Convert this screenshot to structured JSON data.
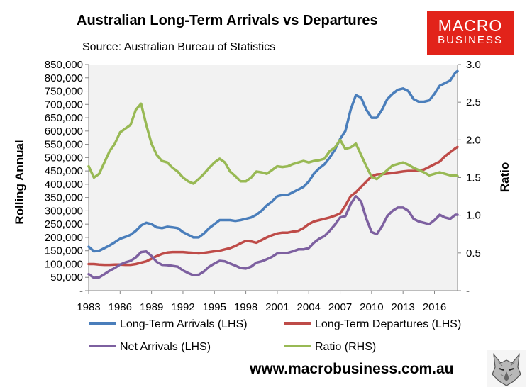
{
  "header": {
    "title": "Australian Long-Term Arrivals vs Departures",
    "subtitle": "Source: Australian Bureau of Statistics"
  },
  "logo": {
    "line1": "MACRO",
    "line2": "BUSINESS",
    "color": "#e2231a"
  },
  "footer": {
    "website": "www.macrobusiness.com.au"
  },
  "chart_data": {
    "type": "line",
    "title": "Australian Long-Term Arrivals vs Departures",
    "subtitle": "Source: Australian Bureau of Statistics",
    "ylabel": "Rolling Annual",
    "y2label": "Ratio",
    "x_ticks": [
      "1983",
      "1986",
      "1989",
      "1992",
      "1995",
      "1998",
      "2001",
      "2004",
      "2007",
      "2010",
      "2013",
      "2016"
    ],
    "xlim": [
      1983,
      2018.2
    ],
    "ylim": [
      0,
      850000
    ],
    "y2lim": [
      0,
      3.0
    ],
    "y_ticks": [
      "-",
      "50,000",
      "100,000",
      "150,000",
      "200,000",
      "250,000",
      "300,000",
      "350,000",
      "400,000",
      "450,000",
      "500,000",
      "550,000",
      "600,000",
      "650,000",
      "700,000",
      "750,000",
      "800,000",
      "850,000"
    ],
    "y2_ticks": [
      "-",
      "0.5",
      "1.0",
      "1.5",
      "2.0",
      "2.5",
      "3.0"
    ],
    "legend_position": "bottom",
    "background": "#f2f2f2",
    "series": [
      {
        "name": "Long-Term Arrivals (LHS)",
        "axis": "left",
        "color": "#4a7ebb",
        "x": [
          1983,
          1983.5,
          1984,
          1984.5,
          1985,
          1985.5,
          1986,
          1986.5,
          1987,
          1987.5,
          1988,
          1988.5,
          1989,
          1989.5,
          1990,
          1990.5,
          1991,
          1991.5,
          1992,
          1992.5,
          1993,
          1993.5,
          1994,
          1994.5,
          1995,
          1995.5,
          1996,
          1996.5,
          1997,
          1997.5,
          1998,
          1998.5,
          1999,
          1999.5,
          2000,
          2000.5,
          2001,
          2001.5,
          2002,
          2002.5,
          2003,
          2003.5,
          2004,
          2004.5,
          2005,
          2005.5,
          2006,
          2006.5,
          2007,
          2007.5,
          2008,
          2008.5,
          2009,
          2009.5,
          2010,
          2010.5,
          2011,
          2011.5,
          2012,
          2012.5,
          2013,
          2013.5,
          2014,
          2014.5,
          2015,
          2015.5,
          2016,
          2016.5,
          2017,
          2017.5,
          2018,
          2018.2
        ],
        "values": [
          165000,
          148000,
          150000,
          160000,
          170000,
          182000,
          195000,
          202000,
          210000,
          225000,
          245000,
          255000,
          250000,
          238000,
          235000,
          240000,
          238000,
          235000,
          220000,
          210000,
          200000,
          200000,
          215000,
          235000,
          250000,
          265000,
          265000,
          265000,
          262000,
          265000,
          270000,
          275000,
          285000,
          300000,
          320000,
          335000,
          355000,
          360000,
          360000,
          370000,
          380000,
          390000,
          410000,
          440000,
          460000,
          475000,
          500000,
          530000,
          570000,
          600000,
          680000,
          735000,
          725000,
          680000,
          650000,
          650000,
          680000,
          720000,
          740000,
          755000,
          760000,
          750000,
          720000,
          710000,
          710000,
          715000,
          740000,
          770000,
          780000,
          790000,
          820000,
          825000
        ]
      },
      {
        "name": "Long-Term Departures (LHS)",
        "axis": "left",
        "color": "#be4b48",
        "x": [
          1983,
          1983.5,
          1984,
          1984.5,
          1985,
          1985.5,
          1986,
          1986.5,
          1987,
          1987.5,
          1988,
          1988.5,
          1989,
          1989.5,
          1990,
          1990.5,
          1991,
          1991.5,
          1992,
          1992.5,
          1993,
          1993.5,
          1994,
          1994.5,
          1995,
          1995.5,
          1996,
          1996.5,
          1997,
          1997.5,
          1998,
          1998.5,
          1999,
          1999.5,
          2000,
          2000.5,
          2001,
          2001.5,
          2002,
          2002.5,
          2003,
          2003.5,
          2004,
          2004.5,
          2005,
          2005.5,
          2006,
          2006.5,
          2007,
          2007.5,
          2008,
          2008.5,
          2009,
          2009.5,
          2010,
          2010.5,
          2011,
          2011.5,
          2012,
          2012.5,
          2013,
          2013.5,
          2014,
          2014.5,
          2015,
          2015.5,
          2016,
          2016.5,
          2017,
          2017.5,
          2018,
          2018.2
        ],
        "values": [
          100000,
          100000,
          98000,
          97000,
          97000,
          98000,
          98000,
          97000,
          97000,
          100000,
          105000,
          110000,
          120000,
          130000,
          138000,
          143000,
          145000,
          145000,
          145000,
          143000,
          142000,
          140000,
          142000,
          145000,
          148000,
          150000,
          155000,
          160000,
          168000,
          178000,
          187000,
          185000,
          180000,
          190000,
          200000,
          208000,
          215000,
          218000,
          218000,
          222000,
          225000,
          235000,
          250000,
          260000,
          265000,
          270000,
          275000,
          282000,
          290000,
          320000,
          355000,
          370000,
          390000,
          410000,
          430000,
          437000,
          438000,
          440000,
          442000,
          445000,
          448000,
          450000,
          450000,
          452000,
          455000,
          465000,
          475000,
          485000,
          505000,
          520000,
          535000,
          540000
        ]
      },
      {
        "name": "Net Arrivals (LHS)",
        "axis": "left",
        "color": "#7d60a0",
        "x": [
          1983,
          1983.5,
          1984,
          1984.5,
          1985,
          1985.5,
          1986,
          1986.5,
          1987,
          1987.5,
          1988,
          1988.5,
          1989,
          1989.5,
          1990,
          1990.5,
          1991,
          1991.5,
          1992,
          1992.5,
          1993,
          1993.5,
          1994,
          1994.5,
          1995,
          1995.5,
          1996,
          1996.5,
          1997,
          1997.5,
          1998,
          1998.5,
          1999,
          1999.5,
          2000,
          2000.5,
          2001,
          2001.5,
          2002,
          2002.5,
          2003,
          2003.5,
          2004,
          2004.5,
          2005,
          2005.5,
          2006,
          2006.5,
          2007,
          2007.5,
          2008,
          2008.5,
          2009,
          2009.5,
          2010,
          2010.5,
          2011,
          2011.5,
          2012,
          2012.5,
          2013,
          2013.5,
          2014,
          2014.5,
          2015,
          2015.5,
          2016,
          2016.5,
          2017,
          2017.5,
          2018,
          2018.2
        ],
        "values": [
          62000,
          48000,
          50000,
          62000,
          75000,
          85000,
          98000,
          106000,
          112000,
          125000,
          145000,
          147000,
          130000,
          108000,
          97000,
          96000,
          93000,
          90000,
          76000,
          66000,
          58000,
          60000,
          72000,
          90000,
          102000,
          112000,
          110000,
          102000,
          94000,
          85000,
          83000,
          90000,
          105000,
          110000,
          118000,
          127000,
          140000,
          141000,
          142000,
          148000,
          155000,
          155000,
          160000,
          180000,
          195000,
          205000,
          225000,
          248000,
          275000,
          280000,
          325000,
          355000,
          335000,
          270000,
          220000,
          212000,
          242000,
          280000,
          300000,
          312000,
          312000,
          300000,
          270000,
          260000,
          255000,
          250000,
          265000,
          285000,
          275000,
          270000,
          285000,
          285000
        ]
      },
      {
        "name": "Ratio (RHS)",
        "axis": "right",
        "color": "#98b954",
        "x": [
          1983,
          1983.5,
          1984,
          1984.5,
          1985,
          1985.5,
          1986,
          1986.5,
          1987,
          1987.5,
          1988,
          1988.5,
          1989,
          1989.5,
          1990,
          1990.5,
          1991,
          1991.5,
          1992,
          1992.5,
          1993,
          1993.5,
          1994,
          1994.5,
          1995,
          1995.5,
          1996,
          1996.5,
          1997,
          1997.5,
          1998,
          1998.5,
          1999,
          1999.5,
          2000,
          2000.5,
          2001,
          2001.5,
          2002,
          2002.5,
          2003,
          2003.5,
          2004,
          2004.5,
          2005,
          2005.5,
          2006,
          2006.5,
          2007,
          2007.5,
          2008,
          2008.5,
          2009,
          2009.5,
          2010,
          2010.5,
          2011,
          2011.5,
          2012,
          2012.5,
          2013,
          2013.5,
          2014,
          2014.5,
          2015,
          2015.5,
          2016,
          2016.5,
          2017,
          2017.5,
          2018,
          2018.2
        ],
        "values": [
          1.65,
          1.5,
          1.55,
          1.7,
          1.85,
          1.95,
          2.1,
          2.15,
          2.2,
          2.4,
          2.48,
          2.2,
          1.95,
          1.8,
          1.72,
          1.7,
          1.63,
          1.58,
          1.5,
          1.45,
          1.42,
          1.48,
          1.55,
          1.63,
          1.7,
          1.75,
          1.7,
          1.58,
          1.52,
          1.45,
          1.45,
          1.5,
          1.58,
          1.57,
          1.55,
          1.6,
          1.65,
          1.64,
          1.65,
          1.68,
          1.7,
          1.72,
          1.7,
          1.72,
          1.73,
          1.75,
          1.85,
          1.9,
          2.0,
          1.88,
          1.9,
          1.95,
          1.8,
          1.65,
          1.51,
          1.48,
          1.54,
          1.6,
          1.66,
          1.68,
          1.7,
          1.67,
          1.63,
          1.6,
          1.57,
          1.53,
          1.55,
          1.57,
          1.55,
          1.53,
          1.53,
          1.52
        ]
      }
    ]
  }
}
